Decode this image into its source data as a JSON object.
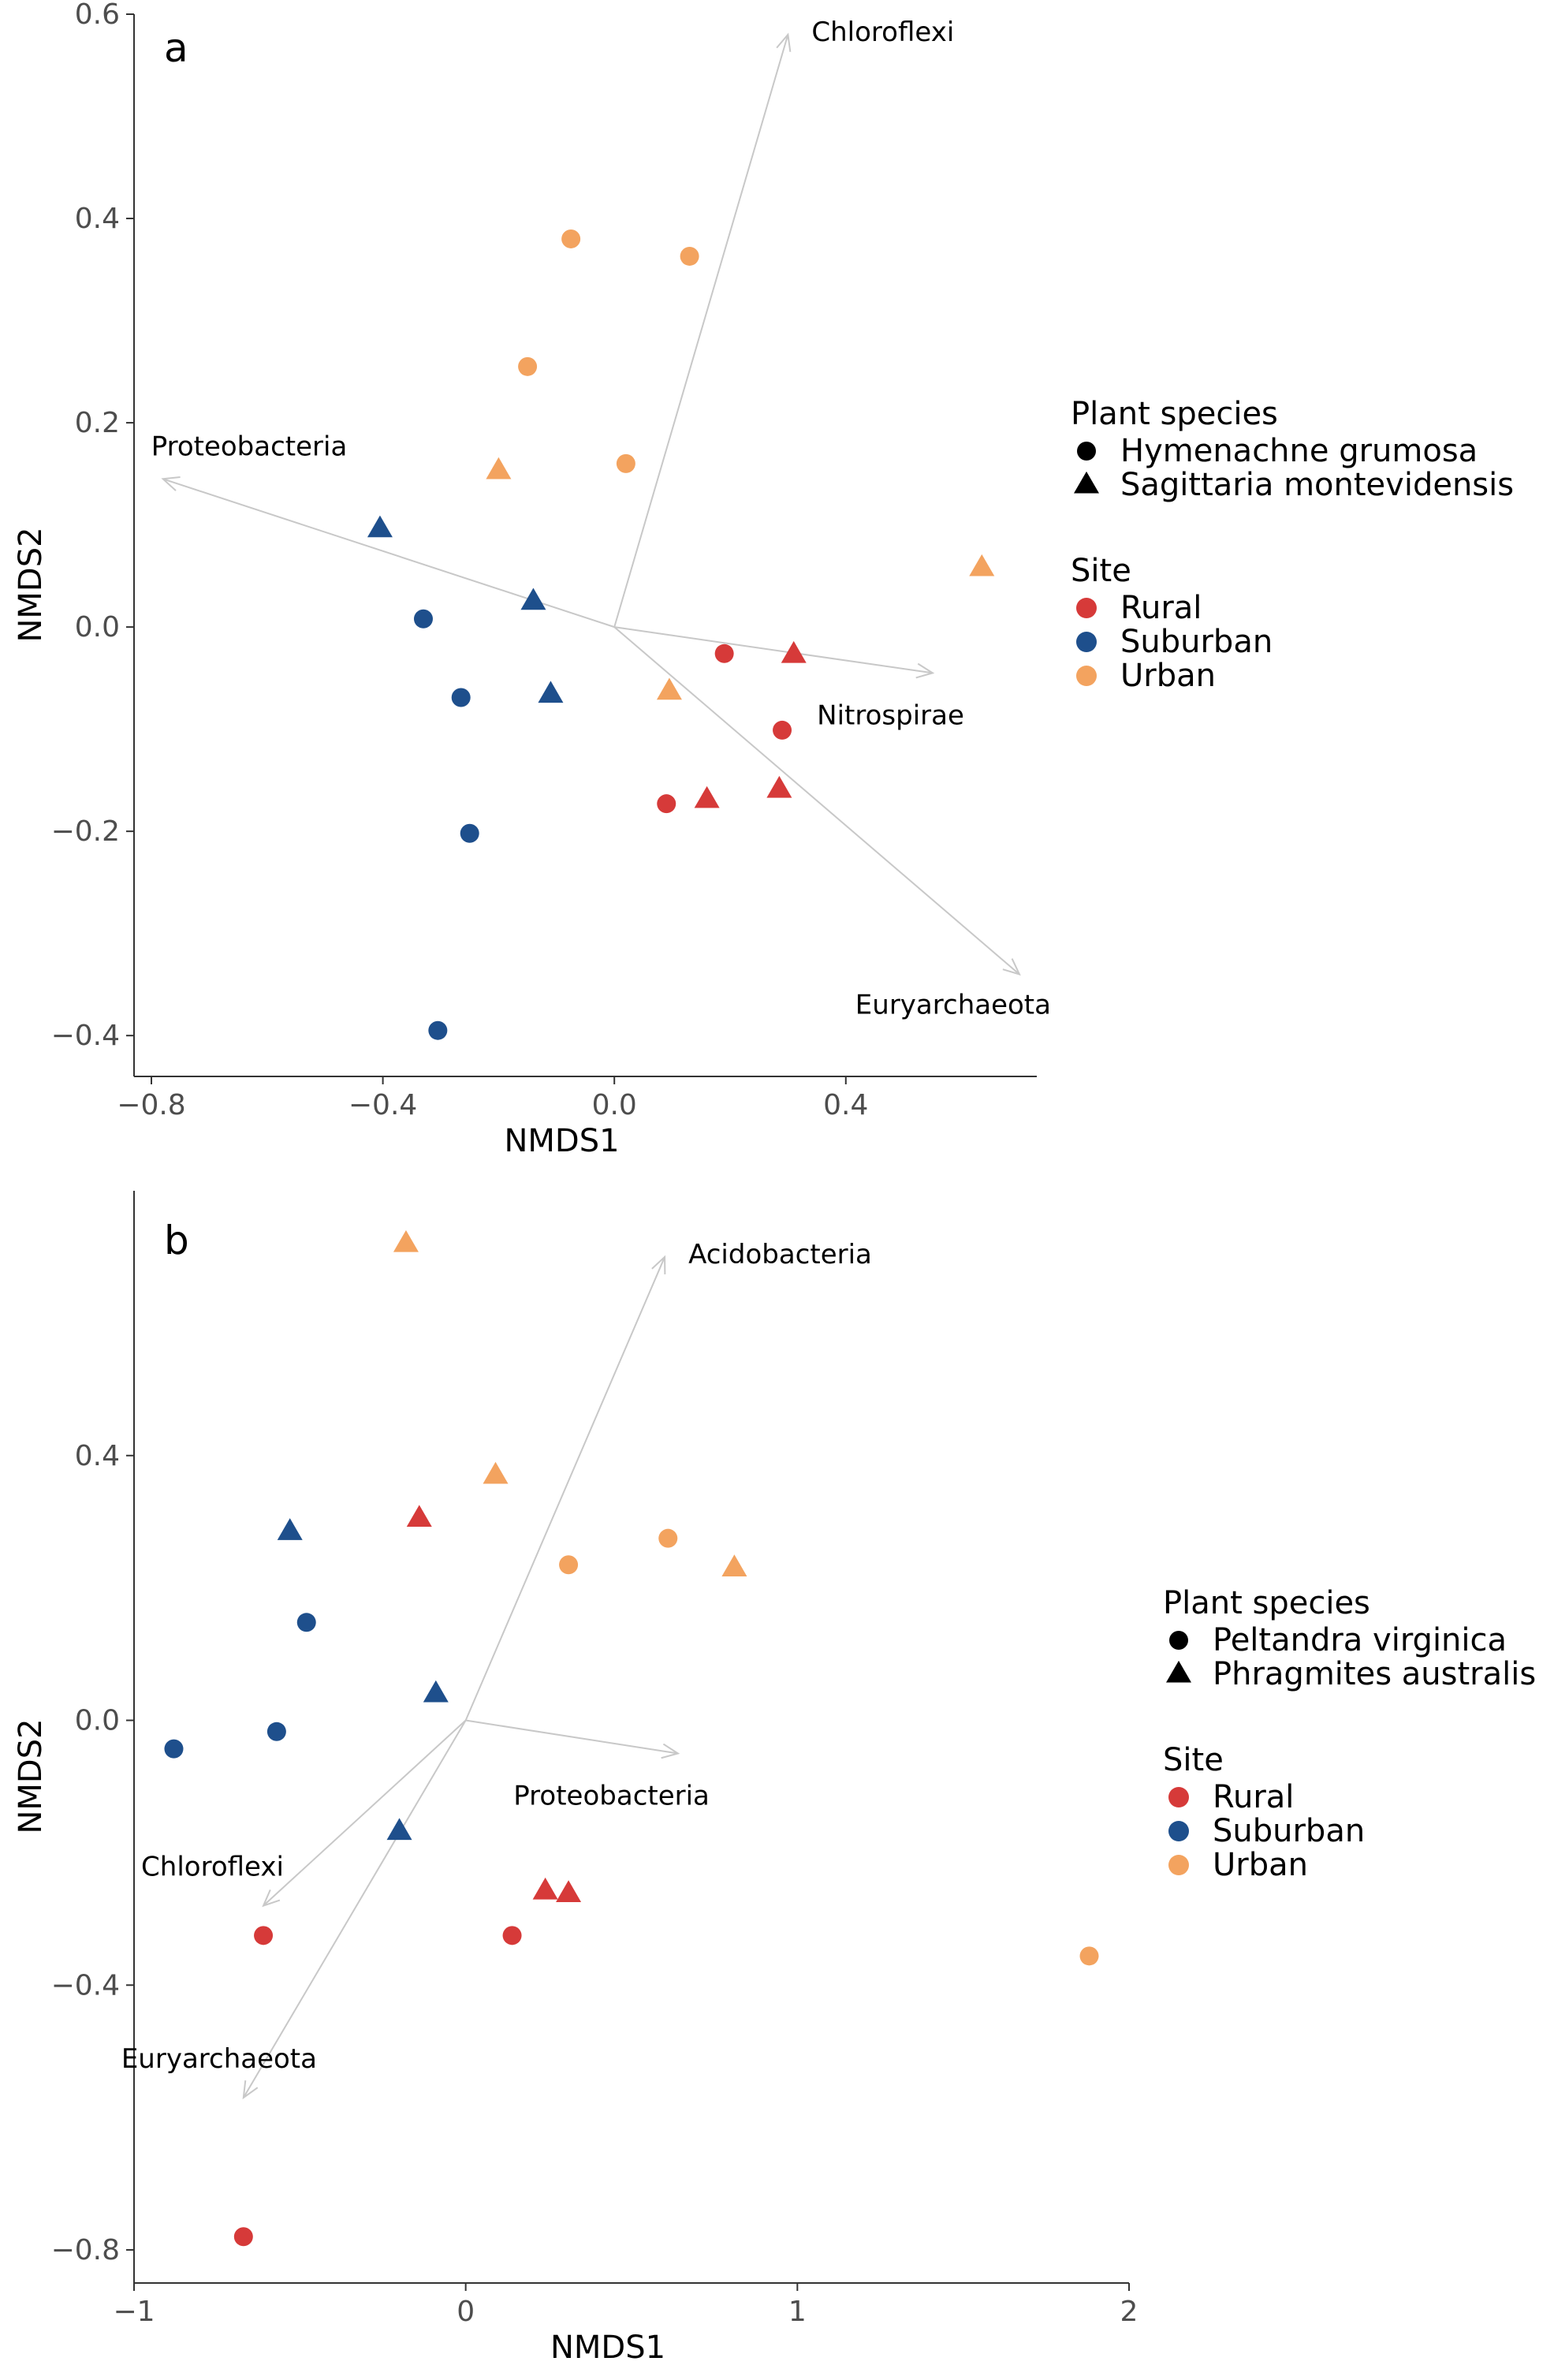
{
  "colors": {
    "Rural": "#D63A39",
    "Suburban": "#1E4F8C",
    "Urban": "#F3A35F",
    "vector": "#c8c8c8",
    "axis": "#333333"
  },
  "chart_data": [
    {
      "type": "scatter",
      "panel_label": "a",
      "xlabel": "NMDS1",
      "ylabel": "NMDS2",
      "xlim": [
        -0.83,
        0.73
      ],
      "ylim": [
        -0.44,
        0.6
      ],
      "xticks": [
        -0.8,
        -0.4,
        0.0,
        0.4
      ],
      "xtick_labels": [
        "−0.8",
        "−0.4",
        "0.0",
        "0.4"
      ],
      "yticks": [
        -0.4,
        -0.2,
        0.0,
        0.2,
        0.4,
        0.6
      ],
      "ytick_labels": [
        "−0.4",
        "−0.2",
        "0.0",
        "0.2",
        "0.4",
        "0.6"
      ],
      "legend": {
        "shape_title": "Plant species",
        "shapes": [
          {
            "shape": "circle",
            "label": "Hymenachne grumosa"
          },
          {
            "shape": "triangle",
            "label": "Sagittaria montevidensis"
          }
        ],
        "color_title": "Site",
        "colors": [
          {
            "site": "Rural",
            "label": "Rural"
          },
          {
            "site": "Suburban",
            "label": "Suburban"
          },
          {
            "site": "Urban",
            "label": "Urban"
          }
        ]
      },
      "vectors": [
        {
          "label": "Chloroflexi",
          "x": 0.3,
          "y": 0.58
        },
        {
          "label": "Proteobacteria",
          "x": -0.78,
          "y": 0.145
        },
        {
          "label": "Nitrospirae",
          "x": 0.55,
          "y": -0.045
        },
        {
          "label": "Euryarchaeota",
          "x": 0.7,
          "y": -0.34
        }
      ],
      "points": [
        {
          "x": -0.075,
          "y": 0.38,
          "site": "Urban",
          "shape": "circle"
        },
        {
          "x": 0.13,
          "y": 0.363,
          "site": "Urban",
          "shape": "circle"
        },
        {
          "x": -0.15,
          "y": 0.255,
          "site": "Urban",
          "shape": "circle"
        },
        {
          "x": 0.02,
          "y": 0.16,
          "site": "Urban",
          "shape": "circle"
        },
        {
          "x": -0.2,
          "y": 0.153,
          "site": "Urban",
          "shape": "triangle"
        },
        {
          "x": 0.635,
          "y": 0.058,
          "site": "Urban",
          "shape": "triangle"
        },
        {
          "x": 0.095,
          "y": -0.063,
          "site": "Urban",
          "shape": "triangle"
        },
        {
          "x": -0.405,
          "y": 0.096,
          "site": "Suburban",
          "shape": "triangle"
        },
        {
          "x": -0.14,
          "y": 0.025,
          "site": "Suburban",
          "shape": "triangle"
        },
        {
          "x": -0.33,
          "y": 0.008,
          "site": "Suburban",
          "shape": "circle"
        },
        {
          "x": -0.265,
          "y": -0.069,
          "site": "Suburban",
          "shape": "circle"
        },
        {
          "x": -0.11,
          "y": -0.066,
          "site": "Suburban",
          "shape": "triangle"
        },
        {
          "x": -0.25,
          "y": -0.202,
          "site": "Suburban",
          "shape": "circle"
        },
        {
          "x": -0.305,
          "y": -0.395,
          "site": "Suburban",
          "shape": "circle"
        },
        {
          "x": 0.19,
          "y": -0.026,
          "site": "Rural",
          "shape": "circle"
        },
        {
          "x": 0.31,
          "y": -0.027,
          "site": "Rural",
          "shape": "triangle"
        },
        {
          "x": 0.29,
          "y": -0.101,
          "site": "Rural",
          "shape": "circle"
        },
        {
          "x": 0.09,
          "y": -0.173,
          "site": "Rural",
          "shape": "circle"
        },
        {
          "x": 0.16,
          "y": -0.169,
          "site": "Rural",
          "shape": "triangle"
        },
        {
          "x": 0.285,
          "y": -0.159,
          "site": "Rural",
          "shape": "triangle"
        }
      ]
    },
    {
      "type": "scatter",
      "panel_label": "b",
      "xlabel": "NMDS1",
      "ylabel": "NMDS2",
      "xlim": [
        -1.0,
        2.0
      ],
      "ylim": [
        -0.85,
        0.8
      ],
      "xticks": [
        -1,
        0,
        1,
        2
      ],
      "xtick_labels": [
        "−1",
        "0",
        "1",
        "2"
      ],
      "yticks": [
        -0.8,
        -0.4,
        0.0,
        0.4
      ],
      "ytick_labels": [
        "−0.8",
        "−0.4",
        "0.0",
        "0.4"
      ],
      "legend": {
        "shape_title": "Plant species",
        "shapes": [
          {
            "shape": "circle",
            "label": "Peltandra virginica"
          },
          {
            "shape": "triangle",
            "label": "Phragmites australis"
          }
        ],
        "color_title": "Site",
        "colors": [
          {
            "site": "Rural",
            "label": "Rural"
          },
          {
            "site": "Suburban",
            "label": "Suburban"
          },
          {
            "site": "Urban",
            "label": "Urban"
          }
        ]
      },
      "vectors": [
        {
          "label": "Acidobacteria",
          "x": 0.6,
          "y": 0.7
        },
        {
          "label": "Proteobacteria",
          "x": 0.64,
          "y": -0.05
        },
        {
          "label": "Chloroflexi",
          "x": -0.61,
          "y": -0.28
        },
        {
          "label": "Euryarchaeota",
          "x": -0.67,
          "y": -0.57
        }
      ],
      "points": [
        {
          "x": -0.18,
          "y": 0.72,
          "site": "Urban",
          "shape": "triangle"
        },
        {
          "x": 0.09,
          "y": 0.37,
          "site": "Urban",
          "shape": "triangle"
        },
        {
          "x": 0.31,
          "y": 0.235,
          "site": "Urban",
          "shape": "circle"
        },
        {
          "x": 0.61,
          "y": 0.275,
          "site": "Urban",
          "shape": "circle"
        },
        {
          "x": 0.81,
          "y": 0.23,
          "site": "Urban",
          "shape": "triangle"
        },
        {
          "x": 1.88,
          "y": -0.356,
          "site": "Urban",
          "shape": "circle"
        },
        {
          "x": -0.53,
          "y": 0.285,
          "site": "Suburban",
          "shape": "triangle"
        },
        {
          "x": -0.48,
          "y": 0.148,
          "site": "Suburban",
          "shape": "circle"
        },
        {
          "x": -0.09,
          "y": 0.04,
          "site": "Suburban",
          "shape": "triangle"
        },
        {
          "x": -0.57,
          "y": -0.017,
          "site": "Suburban",
          "shape": "circle"
        },
        {
          "x": -0.88,
          "y": -0.043,
          "site": "Suburban",
          "shape": "circle"
        },
        {
          "x": -0.2,
          "y": -0.168,
          "site": "Suburban",
          "shape": "triangle"
        },
        {
          "x": -0.14,
          "y": 0.305,
          "site": "Rural",
          "shape": "triangle"
        },
        {
          "x": 0.24,
          "y": -0.258,
          "site": "Rural",
          "shape": "triangle"
        },
        {
          "x": 0.31,
          "y": -0.262,
          "site": "Rural",
          "shape": "triangle"
        },
        {
          "x": -0.61,
          "y": -0.325,
          "site": "Rural",
          "shape": "circle"
        },
        {
          "x": 0.14,
          "y": -0.325,
          "site": "Rural",
          "shape": "circle"
        },
        {
          "x": -0.67,
          "y": -0.78,
          "site": "Rural",
          "shape": "circle"
        }
      ]
    }
  ]
}
